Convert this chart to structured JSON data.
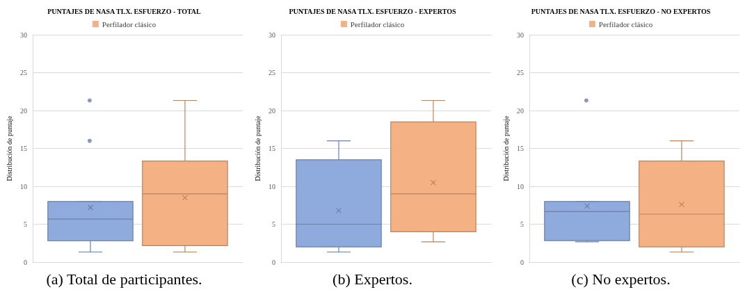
{
  "chart_data": [
    {
      "type": "box",
      "title": "PUNTAJES DE NASA TLX. ESFUERZO - TOTAL",
      "ylabel": "Distribución de puntaje",
      "categories": [
        null
      ],
      "ylim": [
        0,
        30
      ],
      "yticks": [
        0,
        5,
        10,
        15,
        20,
        25,
        30
      ],
      "grid": "y",
      "legend": "top",
      "annotations": [
        "(a) Total de participantes."
      ],
      "series": [
        {
          "color": "#8faadc",
          "boxes": [
            {
              "low": 1.33,
              "q1": 2.8,
              "median": 5.67,
              "q3": 8,
              "high": 8,
              "mean": 7.2,
              "outliers": [
                16,
                21.33
              ]
            }
          ]
        },
        {
          "name": "Perfilador clásico",
          "color": "#f4b183",
          "boxes": [
            {
              "low": 1.33,
              "q1": 2.17,
              "median": 9,
              "q3": 13.33,
              "high": 21.33,
              "mean": 8.5
            }
          ]
        }
      ]
    },
    {
      "type": "box",
      "title": "PUNTAJES DE NASA TLX. ESFUERZO - EXPERTOS",
      "ylabel": "Distribución de puntaje",
      "categories": [
        null
      ],
      "ylim": [
        0,
        30
      ],
      "yticks": [
        0,
        5,
        10,
        15,
        20,
        25,
        30
      ],
      "grid": "y",
      "legend": "top",
      "annotations": [
        "(b) Expertos."
      ],
      "series": [
        {
          "color": "#8faadc",
          "boxes": [
            {
              "low": 1.33,
              "q1": 2,
              "median": 5,
              "q3": 13.5,
              "high": 16,
              "mean": 6.8
            }
          ]
        },
        {
          "name": "Perfilador clásico",
          "color": "#f4b183",
          "boxes": [
            {
              "low": 2.67,
              "q1": 4,
              "median": 9,
              "q3": 18.5,
              "high": 21.33,
              "mean": 10.5
            }
          ]
        }
      ]
    },
    {
      "type": "box",
      "title": "PUNTAJES DE NASA TLX. ESFUERZO - NO EXPERTOS",
      "ylabel": "Distribución de puntaje",
      "categories": [
        null
      ],
      "ylim": [
        0,
        30
      ],
      "yticks": [
        0,
        5,
        10,
        15,
        20,
        25,
        30
      ],
      "grid": "y",
      "legend": "top",
      "annotations": [
        "(c) No expertos."
      ],
      "series": [
        {
          "color": "#8faadc",
          "boxes": [
            {
              "low": 2.67,
              "q1": 2.83,
              "median": 6.67,
              "q3": 8,
              "high": 8,
              "mean": 7.4,
              "outliers": [
                21.33
              ]
            }
          ]
        },
        {
          "name": "Perfilador clásico",
          "color": "#f4b183",
          "boxes": [
            {
              "low": 1.33,
              "q1": 2,
              "median": 6.33,
              "q3": 13.33,
              "high": 16,
              "mean": 7.6
            }
          ]
        }
      ]
    }
  ]
}
